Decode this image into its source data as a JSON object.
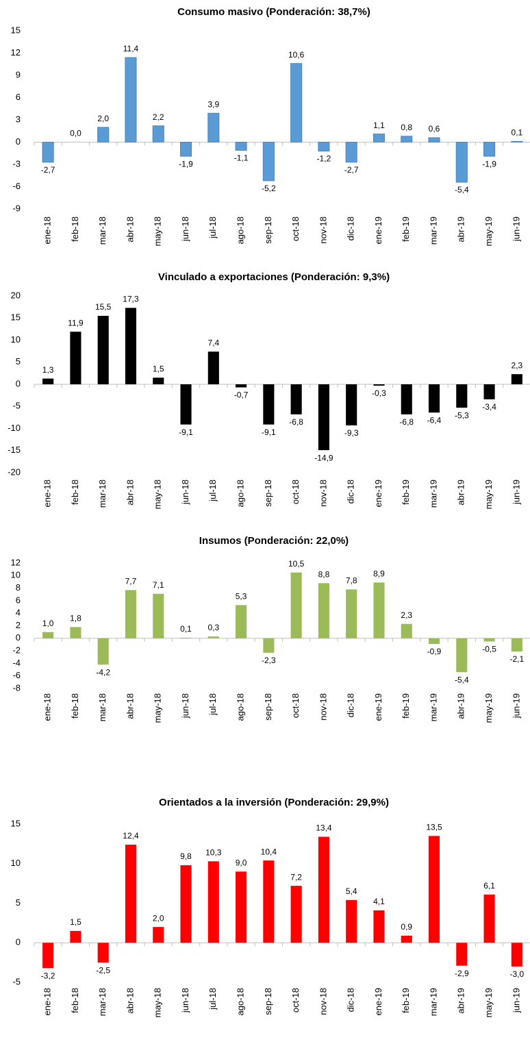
{
  "chart_data": [
    {
      "type": "bar",
      "title": "Consumo masivo (Ponderación: 38,7%)",
      "categories": [
        "ene-18",
        "feb-18",
        "mar-18",
        "abr-18",
        "may-18",
        "jun-18",
        "jul-18",
        "ago-18",
        "sep-18",
        "oct-18",
        "nov-18",
        "dic-18",
        "ene-19",
        "feb-19",
        "mar-19",
        "abr-19",
        "may-19",
        "jun-19"
      ],
      "values": [
        -2.7,
        0.0,
        2.0,
        11.4,
        2.2,
        -1.9,
        3.9,
        -1.1,
        -5.2,
        10.6,
        -1.2,
        -2.7,
        1.1,
        0.8,
        0.6,
        -5.4,
        -1.9,
        0.1
      ],
      "value_labels": [
        "-2,7",
        "0,0",
        "2,0",
        "11,4",
        "2,2",
        "-1,9",
        "3,9",
        "-1,1",
        "-5,2",
        "10,6",
        "-1,2",
        "-2,7",
        "1,1",
        "0,8",
        "0,6",
        "-5,4",
        "-1,9",
        "0,1"
      ],
      "color": "#5b9bd5",
      "ylim": [
        -9,
        15
      ],
      "yticks": [
        -9,
        -6,
        -3,
        0,
        3,
        6,
        9,
        12,
        15
      ]
    },
    {
      "type": "bar",
      "title": "Vinculado a exportaciones (Ponderación: 9,3%)",
      "categories": [
        "ene-18",
        "feb-18",
        "mar-18",
        "abr-18",
        "may-18",
        "jun-18",
        "jul-18",
        "ago-18",
        "sep-18",
        "oct-18",
        "nov-18",
        "dic-18",
        "ene-19",
        "feb-19",
        "mar-19",
        "abr-19",
        "may-19",
        "jun-19"
      ],
      "values": [
        1.3,
        11.9,
        15.5,
        17.3,
        1.5,
        -9.1,
        7.4,
        -0.7,
        -9.1,
        -6.8,
        -14.9,
        -9.3,
        -0.3,
        -6.8,
        -6.4,
        -5.3,
        -3.4,
        2.3
      ],
      "value_labels": [
        "1,3",
        "11,9",
        "15,5",
        "17,3",
        "1,5",
        "-9,1",
        "7,4",
        "-0,7",
        "-9,1",
        "-6,8",
        "-14,9",
        "-9,3",
        "-0,3",
        "-6,8",
        "-6,4",
        "-5,3",
        "-3,4",
        "2,3"
      ],
      "color": "#000000",
      "ylim": [
        -20,
        20
      ],
      "yticks": [
        -20,
        -15,
        -10,
        -5,
        0,
        5,
        10,
        15,
        20
      ]
    },
    {
      "type": "bar",
      "title": "Insumos (Ponderación: 22,0%)",
      "categories": [
        "ene-18",
        "feb-18",
        "mar-18",
        "abr-18",
        "may-18",
        "jun-18",
        "jul-18",
        "ago-18",
        "sep-18",
        "oct-18",
        "nov-18",
        "dic-18",
        "ene-19",
        "feb-19",
        "mar-19",
        "abr-19",
        "may-19",
        "jun-19"
      ],
      "values": [
        1.0,
        1.8,
        -4.2,
        7.7,
        7.1,
        0.1,
        0.3,
        5.3,
        -2.3,
        10.5,
        8.8,
        7.8,
        8.9,
        2.3,
        -0.9,
        -5.4,
        -0.5,
        -2.1
      ],
      "value_labels": [
        "1,0",
        "1,8",
        "-4,2",
        "7,7",
        "7,1",
        "0,1",
        "0,3",
        "5,3",
        "-2,3",
        "10,5",
        "8,8",
        "7,8",
        "8,9",
        "2,3",
        "-0,9",
        "-5,4",
        "-0,5",
        "-2,1"
      ],
      "color": "#9bbb59",
      "ylim": [
        -8,
        12
      ],
      "yticks": [
        -8,
        -6,
        -4,
        -2,
        0,
        2,
        4,
        6,
        8,
        10,
        12
      ]
    },
    {
      "type": "bar",
      "title": "Orientados a la inversión (Ponderación: 29,9%)",
      "categories": [
        "ene-18",
        "feb-18",
        "mar-18",
        "abr-18",
        "may-18",
        "jun-18",
        "jul-18",
        "ago-18",
        "sep-18",
        "oct-18",
        "nov-18",
        "dic-18",
        "ene-19",
        "feb-19",
        "mar-19",
        "abr-19",
        "may-19",
        "jun-19"
      ],
      "values": [
        -3.2,
        1.5,
        -2.5,
        12.4,
        2.0,
        9.8,
        10.3,
        9.0,
        10.4,
        7.2,
        13.4,
        5.4,
        4.1,
        0.9,
        13.5,
        -2.9,
        6.1,
        -3.0
      ],
      "value_labels": [
        "-3,2",
        "1,5",
        "-2,5",
        "12,4",
        "2,0",
        "9,8",
        "10,3",
        "9,0",
        "10,4",
        "7,2",
        "13,4",
        "5,4",
        "4,1",
        "0,9",
        "13,5",
        "-2,9",
        "6,1",
        "-3,0"
      ],
      "color": "#ff0000",
      "ylim": [
        -5,
        15
      ],
      "yticks": [
        -5,
        0,
        5,
        10,
        15
      ]
    }
  ]
}
